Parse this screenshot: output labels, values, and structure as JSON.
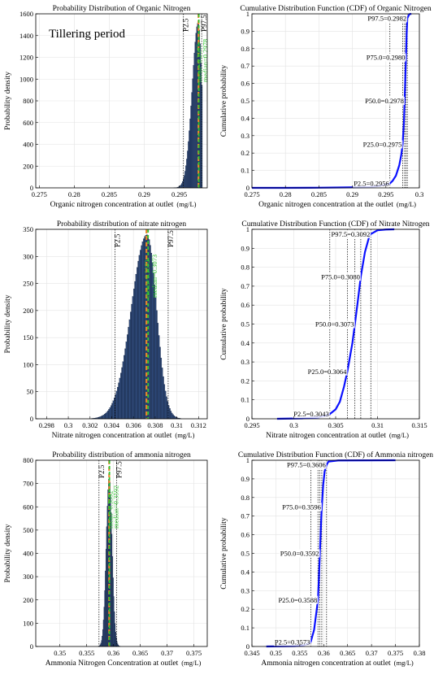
{
  "figure": {
    "colors": {
      "bar": "#2e4a7a",
      "bar_edge": "#0b1630",
      "cdf": "#0a10ff",
      "mean_line": "#e8862a",
      "median_line": "#31c531",
      "pct_line": "#000000",
      "grid": "#e3e3e3"
    }
  },
  "chart_data": [
    {
      "id": "organic-pdf",
      "type": "bar",
      "title": "Probability Distribution of Organic Nitrogen",
      "xlabel": "Organic nitrogen concentration at outlet",
      "xunit": "(mg/L)",
      "ylabel": "Probability density",
      "annotation": "Tillering period",
      "xlim": [
        0.2745,
        0.299
      ],
      "ylim": [
        0,
        1600
      ],
      "xticks": [
        0.275,
        0.28,
        0.285,
        0.29,
        0.295
      ],
      "yticks": [
        0,
        200,
        400,
        600,
        800,
        1000,
        1200,
        1400,
        1600
      ],
      "grid": true,
      "distribution": {
        "shape": "left-skewed",
        "mean": 0.29772,
        "sd": 0.00072,
        "peak": 1520,
        "bin_width": 0.00012,
        "xmin": 0.2935,
        "xmax": 0.2983
      },
      "lines": [
        {
          "kind": "percentile",
          "label": "P2.5",
          "x": 0.2956
        },
        {
          "kind": "percentile",
          "label": "P97.5",
          "x": 0.2982
        },
        {
          "kind": "mean",
          "label": "mean=0.2977",
          "x": 0.29775
        },
        {
          "kind": "median",
          "label": "median=0.2978",
          "x": 0.2978
        }
      ]
    },
    {
      "id": "organic-cdf",
      "type": "line",
      "title": "Cumulative Distribution Function (CDF) of Organic Nitrogen",
      "xlabel": "Organic nitrogen concentration at the outlet",
      "xunit": "(mg/L)",
      "ylabel": "Cumulative probability",
      "xlim": [
        0.275,
        0.3
      ],
      "ylim": [
        0,
        1
      ],
      "xticks": [
        0.275,
        0.28,
        0.285,
        0.29,
        0.295,
        0.3
      ],
      "yticks": [
        0,
        0.1,
        0.2,
        0.3,
        0.4,
        0.5,
        0.6,
        0.7,
        0.8,
        0.9,
        1
      ],
      "grid": true,
      "x": [
        0.275,
        0.28,
        0.285,
        0.29,
        0.293,
        0.294,
        0.295,
        0.2956,
        0.296,
        0.2965,
        0.297,
        0.2973,
        0.2975,
        0.2977,
        0.2978,
        0.2979,
        0.298,
        0.2981,
        0.2982,
        0.2985,
        0.2988
      ],
      "y": [
        0,
        0,
        0.001,
        0.003,
        0.006,
        0.011,
        0.019,
        0.025,
        0.04,
        0.07,
        0.13,
        0.19,
        0.25,
        0.38,
        0.5,
        0.63,
        0.75,
        0.88,
        0.975,
        0.998,
        1
      ],
      "percentiles": [
        {
          "label": "P2.5=0.2956",
          "x": 0.2956,
          "y": 0.025
        },
        {
          "label": "P25.0=0.2975",
          "x": 0.2975,
          "y": 0.25
        },
        {
          "label": "P50.0=0.2978",
          "x": 0.2978,
          "y": 0.5
        },
        {
          "label": "P75.0=0.2980",
          "x": 0.298,
          "y": 0.75
        },
        {
          "label": "P97.5=0.2982",
          "x": 0.2982,
          "y": 0.975
        }
      ]
    },
    {
      "id": "nitrate-pdf",
      "type": "bar",
      "title": "Probability distribution of nitrate nitrogen",
      "xlabel": "Nitrate nitrogen concentration at outlet",
      "xunit": "(mg/L)",
      "ylabel": "Probability density",
      "annotation": "",
      "xlim": [
        0.297,
        0.3128
      ],
      "ylim": [
        0,
        350
      ],
      "xticks": [
        0.298,
        0.3,
        0.302,
        0.304,
        0.306,
        0.308,
        0.31,
        0.312
      ],
      "yticks": [
        0,
        50,
        100,
        150,
        200,
        250,
        300,
        350
      ],
      "grid": true,
      "distribution": {
        "shape": "left-skewed",
        "mean": 0.30725,
        "sd": 0.00118,
        "peak": 340,
        "bin_width": 0.0001,
        "xmin": 0.3005,
        "xmax": 0.3115
      },
      "lines": [
        {
          "kind": "percentile",
          "label": "P2.5",
          "x": 0.3043
        },
        {
          "kind": "percentile",
          "label": "P97.5",
          "x": 0.3092
        },
        {
          "kind": "mean",
          "label": "mean=0.3072",
          "x": 0.3072
        },
        {
          "kind": "median",
          "label": "median=0.3073",
          "x": 0.30735
        }
      ]
    },
    {
      "id": "nitrate-cdf",
      "type": "line",
      "title": "Cumulative Distribution Function (CDF) of Nitrate Nitrogen",
      "xlabel": "Nitrate nitrogen concentration at outlet",
      "xunit": "(mg/L)",
      "ylabel": "Cumulative probability",
      "xlim": [
        0.295,
        0.315
      ],
      "ylim": [
        0,
        1
      ],
      "xticks": [
        0.295,
        0.3,
        0.305,
        0.31,
        0.315
      ],
      "yticks": [
        0,
        0.1,
        0.2,
        0.3,
        0.4,
        0.5,
        0.6,
        0.7,
        0.8,
        0.9,
        1
      ],
      "grid": true,
      "x": [
        0.298,
        0.301,
        0.303,
        0.304,
        0.3043,
        0.305,
        0.3055,
        0.306,
        0.3064,
        0.307,
        0.3073,
        0.3077,
        0.308,
        0.3085,
        0.309,
        0.3092,
        0.31,
        0.311,
        0.312
      ],
      "y": [
        0,
        0.002,
        0.008,
        0.018,
        0.025,
        0.05,
        0.09,
        0.17,
        0.25,
        0.4,
        0.5,
        0.64,
        0.75,
        0.88,
        0.96,
        0.975,
        0.995,
        0.999,
        1
      ],
      "percentiles": [
        {
          "label": "P2.5=0.3043",
          "x": 0.3043,
          "y": 0.025
        },
        {
          "label": "P25.0=0.3064",
          "x": 0.3064,
          "y": 0.25
        },
        {
          "label": "P50.0=0.3073",
          "x": 0.3073,
          "y": 0.5
        },
        {
          "label": "P75.0=0.3080",
          "x": 0.308,
          "y": 0.75
        },
        {
          "label": "P97.5=0.3092",
          "x": 0.3092,
          "y": 0.975
        }
      ]
    },
    {
      "id": "ammonia-pdf",
      "type": "bar",
      "title": "Probability distribution of ammonia nitrogen",
      "xlabel": "Ammonia Nitrogen Concentration at outlet",
      "xunit": "(mg/L)",
      "ylabel": "Probability density",
      "annotation": "",
      "xlim": [
        0.3455,
        0.3775
      ],
      "ylim": [
        0,
        800
      ],
      "xticks": [
        0.35,
        0.355,
        0.36,
        0.365,
        0.37,
        0.375
      ],
      "yticks": [
        0,
        100,
        200,
        300,
        400,
        500,
        600,
        700,
        800
      ],
      "grid": true,
      "distribution": {
        "shape": "symmetric",
        "mean": 0.3592,
        "sd": 0.00055,
        "peak": 730,
        "bin_width": 0.00012,
        "xmin": 0.357,
        "xmax": 0.3614
      },
      "lines": [
        {
          "kind": "percentile",
          "label": "P2.5",
          "x": 0.3573
        },
        {
          "kind": "percentile",
          "label": "P97.5",
          "x": 0.3606
        },
        {
          "kind": "mean",
          "label": "mean=0.3592",
          "x": 0.3592
        },
        {
          "kind": "median",
          "label": "median=0.3592",
          "x": 0.35925
        }
      ]
    },
    {
      "id": "ammonia-cdf",
      "type": "line",
      "title": "Cumulative Distribution Function (CDF) of Ammonia nitrogen",
      "xlabel": "Ammonia nitrogen concentration at outlet",
      "xunit": "(mg/L)",
      "ylabel": "Cumulative probability",
      "xlim": [
        0.345,
        0.38
      ],
      "ylim": [
        0,
        1
      ],
      "xticks": [
        0.345,
        0.35,
        0.355,
        0.36,
        0.365,
        0.37,
        0.375,
        0.38
      ],
      "yticks": [
        0,
        0.1,
        0.2,
        0.3,
        0.4,
        0.5,
        0.6,
        0.7,
        0.8,
        0.9,
        1
      ],
      "grid": true,
      "x": [
        0.348,
        0.354,
        0.356,
        0.357,
        0.3573,
        0.358,
        0.3585,
        0.3588,
        0.359,
        0.3592,
        0.3594,
        0.3596,
        0.3599,
        0.3602,
        0.3606,
        0.361,
        0.363,
        0.375
      ],
      "y": [
        0,
        0.002,
        0.008,
        0.016,
        0.025,
        0.09,
        0.19,
        0.25,
        0.37,
        0.5,
        0.63,
        0.75,
        0.87,
        0.94,
        0.975,
        0.993,
        0.999,
        1
      ],
      "percentiles": [
        {
          "label": "P2.5=0.3573",
          "x": 0.3573,
          "y": 0.025
        },
        {
          "label": "P25.0=0.3588",
          "x": 0.3588,
          "y": 0.25
        },
        {
          "label": "P50.0=0.3592",
          "x": 0.3592,
          "y": 0.5
        },
        {
          "label": "P75.0=0.3596",
          "x": 0.3596,
          "y": 0.75
        },
        {
          "label": "P97.5=0.3606",
          "x": 0.3606,
          "y": 0.975
        }
      ]
    }
  ]
}
